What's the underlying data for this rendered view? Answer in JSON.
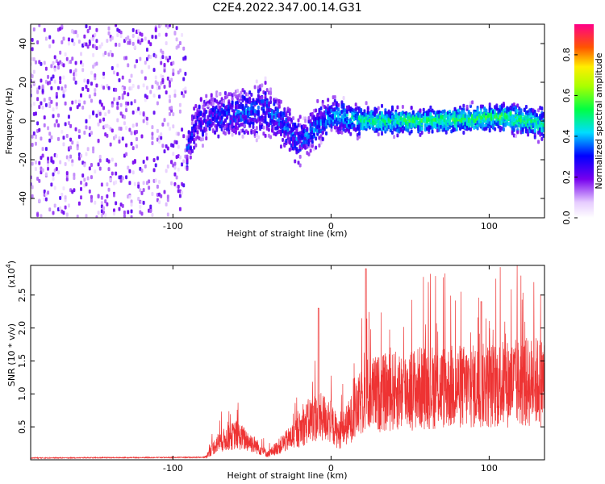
{
  "title": "C2E4.2022.347.00.14.G31",
  "chart_data": [
    {
      "type": "heatmap",
      "xlabel": "Height of straight line (km)",
      "ylabel": "Frequency (Hz)",
      "xlim": [
        -190,
        135
      ],
      "ylim": [
        -50,
        50
      ],
      "xticks": [
        -100,
        0,
        100
      ],
      "yticks": [
        -40,
        -20,
        0,
        20,
        40
      ],
      "colorbar": {
        "label": "Normalized spectral amplitude",
        "ticks": [
          "0.0",
          "0.2",
          "0.4",
          "0.6",
          "0.8"
        ],
        "range": [
          0,
          0.95
        ]
      },
      "description_series": [
        {
          "x": -185,
          "center": 0,
          "spread": 50,
          "amp": 0.12
        },
        {
          "x": -95,
          "center": 0,
          "spread": 50,
          "amp": 0.1
        },
        {
          "x": -92,
          "center": -18,
          "spread": 8,
          "amp": 0.3
        },
        {
          "x": -85,
          "center": 0,
          "spread": 10,
          "amp": 0.25
        },
        {
          "x": -60,
          "center": 4,
          "spread": 10,
          "amp": 0.3
        },
        {
          "x": -40,
          "center": 6,
          "spread": 12,
          "amp": 0.3
        },
        {
          "x": -20,
          "center": -10,
          "spread": 9,
          "amp": 0.3
        },
        {
          "x": 0,
          "center": 3,
          "spread": 8,
          "amp": 0.35
        },
        {
          "x": 20,
          "center": 0,
          "spread": 6,
          "amp": 0.45
        },
        {
          "x": 60,
          "center": 0,
          "spread": 5,
          "amp": 0.5
        },
        {
          "x": 110,
          "center": 2,
          "spread": 6,
          "amp": 0.5
        },
        {
          "x": 135,
          "center": -2,
          "spread": 6,
          "amp": 0.45
        }
      ]
    },
    {
      "type": "line",
      "xlabel": "Height of straight line (km)",
      "ylabel": "SNR (10 * v/v)",
      "yscale_label": "(x10",
      "yscale_exp": "4",
      "xlim": [
        -190,
        135
      ],
      "ylim": [
        0,
        2.95
      ],
      "xticks": [
        -100,
        0,
        100
      ],
      "yticks": [
        "0.5",
        "1.0",
        "1.5",
        "2.0",
        "2.5"
      ],
      "color": "#ee3333",
      "envelope": [
        {
          "x": -190,
          "y": 0.02
        },
        {
          "x": -80,
          "y": 0.03
        },
        {
          "x": -72,
          "y": 0.3
        },
        {
          "x": -60,
          "y": 0.45
        },
        {
          "x": -50,
          "y": 0.3
        },
        {
          "x": -40,
          "y": 0.1
        },
        {
          "x": -25,
          "y": 0.4
        },
        {
          "x": -12,
          "y": 0.75
        },
        {
          "x": -2,
          "y": 0.75
        },
        {
          "x": 5,
          "y": 0.45
        },
        {
          "x": 12,
          "y": 0.7
        },
        {
          "x": 22,
          "y": 1.15
        },
        {
          "x": 35,
          "y": 1.2
        },
        {
          "x": 60,
          "y": 1.3
        },
        {
          "x": 90,
          "y": 1.3
        },
        {
          "x": 110,
          "y": 1.35
        },
        {
          "x": 135,
          "y": 1.4
        }
      ]
    }
  ]
}
